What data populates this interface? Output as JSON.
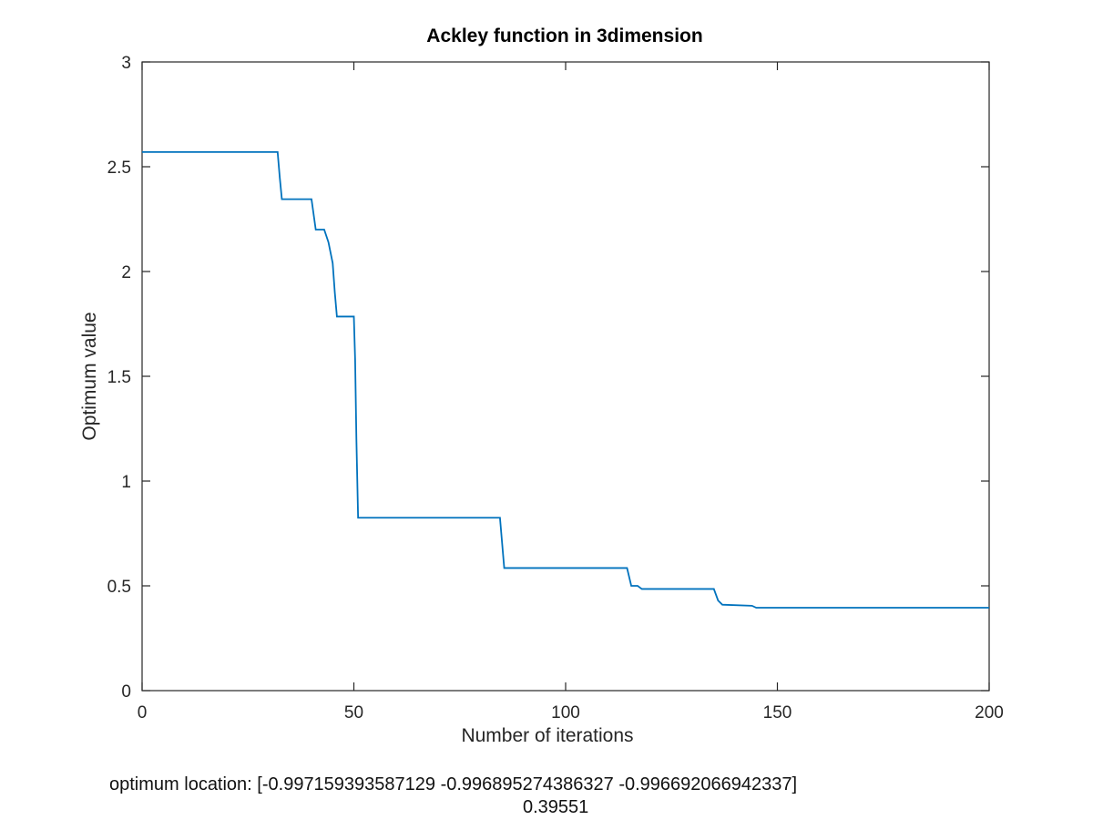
{
  "chart_data": {
    "type": "line",
    "title": "Ackley function in 3dimension",
    "xlabel": "Number of iterations",
    "ylabel": "Optimum value",
    "xlim": [
      0,
      200
    ],
    "ylim": [
      0,
      3
    ],
    "x_ticks": [
      0,
      50,
      100,
      150,
      200
    ],
    "y_ticks": [
      0,
      0.5,
      1,
      1.5,
      2,
      2.5,
      3
    ],
    "x_tick_labels": [
      "0",
      "50",
      "100",
      "150",
      "200"
    ],
    "y_tick_labels": [
      "0",
      "0.5",
      "1",
      "1.5",
      "2",
      "2.5",
      "3"
    ],
    "grid": false,
    "line_color": "#0072bd",
    "series": [
      {
        "x": [
          0,
          32,
          32.5,
          33,
          40,
          41,
          43,
          44,
          45,
          45.5,
          46,
          50,
          50.3,
          50.6,
          51,
          84.5,
          85.5,
          114.5,
          115.5,
          117,
          118,
          135,
          136,
          137,
          144,
          145,
          200
        ],
        "y": [
          2.57,
          2.57,
          2.45,
          2.345,
          2.345,
          2.2,
          2.2,
          2.14,
          2.04,
          1.9,
          1.785,
          1.785,
          1.58,
          1.2,
          0.825,
          0.825,
          0.585,
          0.585,
          0.5,
          0.5,
          0.485,
          0.485,
          0.43,
          0.41,
          0.405,
          0.3955,
          0.3955
        ]
      }
    ]
  },
  "footer": {
    "location_text": "optimum location: [-0.997159393587129 -0.996895274386327 -0.996692066942337]",
    "value_text": "0.39551"
  }
}
